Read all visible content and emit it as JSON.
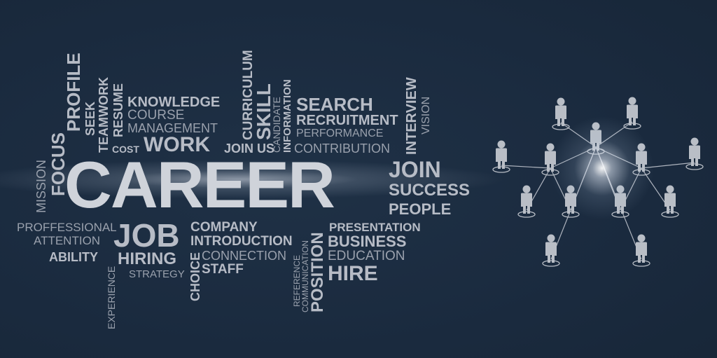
{
  "words": {
    "career": "CAREER",
    "knowledge": "KNOWLEDGE",
    "course": "COURSE",
    "management": "MANAGEMENT",
    "work": "WORK",
    "join_us": "JOIN US",
    "cost": "COST",
    "profile": "PROFILE",
    "seek": "SEEK",
    "teamwork": "TEAMWORK",
    "resume": "RESUME",
    "focus": "FOCUS",
    "mission": "MISSION",
    "curriculum": "CURRICULUM",
    "skill": "SKILL",
    "candidate": "CANDIDATE",
    "information": "INFORMATION",
    "search": "SEARCH",
    "recruitment": "RECRUITMENT",
    "performance": "PERFORMANCE",
    "contribution": "CONTRIBUTION",
    "interview": "INTERVIEW",
    "vision": "VISION",
    "join": "JOIN",
    "success": "SUCCESS",
    "people": "PEOPLE",
    "proffessional": "PROFFESSIONAL",
    "attention": "ATTENTION",
    "ability": "ABILITY",
    "experience": "EXPERIENCE",
    "job": "JOB",
    "hiring": "HIRING",
    "strategy": "STRATEGY",
    "company": "COMPANY",
    "introduction": "INTRODUCTION",
    "connection": "CONNECTION",
    "staff": "STAFF",
    "choice": "CHOICE",
    "reference": "REFERENCE",
    "communication": "COMMUNICATION",
    "position": "POSITION",
    "presentation": "PRESENTATION",
    "business": "BUSINESS",
    "education": "EDUCATION",
    "hire": "HIRE"
  },
  "colors": {
    "background": "#1a2a3e",
    "text": "#b7bcc6",
    "figure": "#b9bec6"
  },
  "network": {
    "icon": "person-icon",
    "node_count": 13
  }
}
